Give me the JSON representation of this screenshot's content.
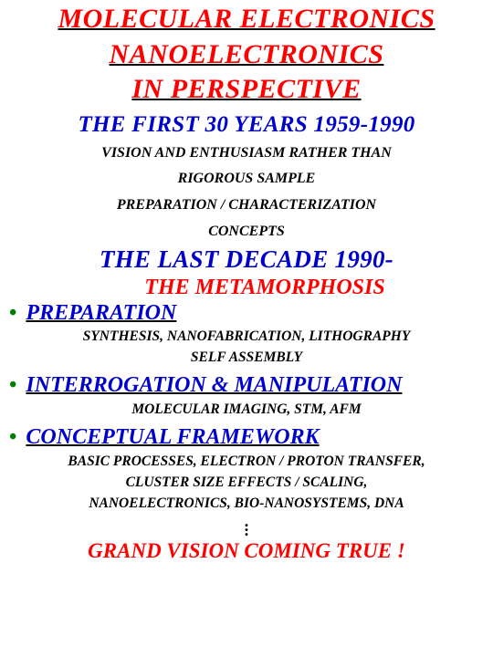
{
  "title": {
    "line1": "MOLECULAR ELECTRONICS",
    "line2": "NANOELECTRONICS",
    "line3": "IN PERSPECTIVE",
    "color": "#ff0000",
    "fontsize": 30
  },
  "section1": {
    "heading": "THE FIRST 30 YEARS 1959-1990",
    "heading_color": "#0000cc",
    "heading_fontsize": 25,
    "body_line1": "VISION AND ENTHUSIASM RATHER THAN",
    "body_line2": "RIGOROUS SAMPLE",
    "body_line3": "PREPARATION / CHARACTERIZATION",
    "body_line4": "CONCEPTS",
    "body_color": "#000000",
    "body_fontsize": 16
  },
  "section2": {
    "heading": "THE  LAST  DECADE  1990-",
    "heading_color": "#0000cc",
    "heading_fontsize": 27,
    "subheading": "THE METAMORPHOSIS",
    "subheading_color": "#ff0000",
    "subheading_fontsize": 24
  },
  "bullets": [
    {
      "marker": "•",
      "marker_color": "#008000",
      "heading": "PREPARATION",
      "heading_color": "#0000cc",
      "heading_fontsize": 24,
      "sub_line1": "SYNTHESIS, NANOFABRICATION, LITHOGRAPHY",
      "sub_line2": "SELF ASSEMBLY",
      "sub_color": "#000000",
      "sub_fontsize": 15.5
    },
    {
      "marker": "•",
      "marker_color": "#008000",
      "heading": "INTERROGATION & MANIPULATION",
      "heading_color": "#0000cc",
      "heading_fontsize": 24,
      "sub_line1": "MOLECULAR IMAGING, STM, AFM",
      "sub_color": "#000000",
      "sub_fontsize": 15.5
    },
    {
      "marker": "•",
      "marker_color": "#008000",
      "heading": "CONCEPTUAL FRAMEWORK",
      "heading_color": "#0000cc",
      "heading_fontsize": 24,
      "sub_line1": "BASIC PROCESSES, ELECTRON / PROTON TRANSFER,",
      "sub_line2": "CLUSTER SIZE EFFECTS / SCALING,",
      "sub_line3": "NANOELECTRONICS, BIO-NANOSYSTEMS, DNA",
      "sub_color": "#000000",
      "sub_fontsize": 15.5
    }
  ],
  "vdots": "⋮",
  "closing": {
    "text": "GRAND VISION COMING TRUE !",
    "color": "#ff0000",
    "fontsize": 23
  },
  "background_color": "#ffffff",
  "font_family": "Times New Roman",
  "font_style": "italic bold"
}
